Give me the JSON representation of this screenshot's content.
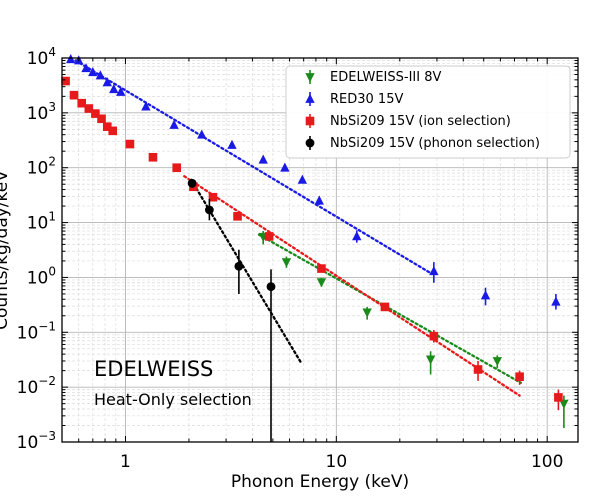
{
  "chart_data": {
    "type": "scatter",
    "xlabel": "Phonon Energy (keV)",
    "ylabel": "Counts/kg/day/keV",
    "xscale": "log",
    "yscale": "log",
    "xlim": [
      0.5,
      140
    ],
    "ylim": [
      0.001,
      10000
    ],
    "grid": true,
    "legend_position": "top-right",
    "x_tick_labels": [
      "1",
      "10",
      "100"
    ],
    "y_tick_labels": [
      {
        "base": "10",
        "exp": "-3"
      },
      {
        "base": "10",
        "exp": "-2"
      },
      {
        "base": "10",
        "exp": "-1"
      },
      {
        "base": "10",
        "exp": "0"
      },
      {
        "base": "10",
        "exp": "1"
      },
      {
        "base": "10",
        "exp": "2"
      },
      {
        "base": "10",
        "exp": "3"
      },
      {
        "base": "10",
        "exp": "4"
      }
    ],
    "annotations": [
      {
        "text": "EDELWEISS",
        "size": "large"
      },
      {
        "text": "Heat-Only selection",
        "size": "medium"
      }
    ],
    "series": [
      {
        "name": "EDELWEISS-III 8V",
        "color": "#1a8a1a",
        "marker": "triangle-down",
        "points": [
          {
            "x": 4.5,
            "y": 5.5,
            "lo": 4.0,
            "hi": 7.0
          },
          {
            "x": 5.8,
            "y": 1.9,
            "lo": 1.5,
            "hi": 2.4
          },
          {
            "x": 8.5,
            "y": 0.82,
            "lo": 0.68,
            "hi": 0.98
          },
          {
            "x": 14,
            "y": 0.23,
            "lo": 0.17,
            "hi": 0.29
          },
          {
            "x": 28,
            "y": 0.032,
            "lo": 0.017,
            "hi": 0.045
          },
          {
            "x": 58,
            "y": 0.03,
            "lo": 0.022,
            "hi": 0.038
          },
          {
            "x": 120,
            "y": 0.005,
            "lo": 0.0018,
            "hi": 0.007
          }
        ],
        "fit": {
          "x": [
            4.3,
            75
          ],
          "y": [
            6.0,
            0.012
          ]
        }
      },
      {
        "name": "RED30 15V",
        "color": "#1a1ae6",
        "marker": "triangle-up",
        "points": [
          {
            "x": 0.55,
            "y": 9500
          },
          {
            "x": 0.6,
            "y": 9000
          },
          {
            "x": 0.65,
            "y": 6500
          },
          {
            "x": 0.7,
            "y": 5500
          },
          {
            "x": 0.76,
            "y": 4800
          },
          {
            "x": 0.82,
            "y": 3600
          },
          {
            "x": 0.88,
            "y": 2700
          },
          {
            "x": 0.95,
            "y": 2400
          },
          {
            "x": 1.25,
            "y": 1300
          },
          {
            "x": 1.7,
            "y": 600
          },
          {
            "x": 2.3,
            "y": 400
          },
          {
            "x": 3.2,
            "y": 260
          },
          {
            "x": 4.5,
            "y": 140
          },
          {
            "x": 5.7,
            "y": 100
          },
          {
            "x": 6.9,
            "y": 60
          },
          {
            "x": 8.3,
            "y": 25,
            "lo": 21,
            "hi": 30
          },
          {
            "x": 12.5,
            "y": 5.6,
            "lo": 4.3,
            "hi": 7.2
          },
          {
            "x": 29,
            "y": 1.3,
            "lo": 0.8,
            "hi": 1.9
          },
          {
            "x": 51,
            "y": 0.47,
            "lo": 0.31,
            "hi": 0.65
          },
          {
            "x": 110,
            "y": 0.36,
            "lo": 0.26,
            "hi": 0.5
          }
        ],
        "fit": {
          "x": [
            0.58,
            28
          ],
          "y": [
            9000,
            1.2
          ]
        }
      },
      {
        "name": "NbSi209 15V (ion selection)",
        "color": "#e61a1a",
        "marker": "square",
        "points": [
          {
            "x": 0.52,
            "y": 3800
          },
          {
            "x": 0.57,
            "y": 2100
          },
          {
            "x": 0.62,
            "y": 1500
          },
          {
            "x": 0.67,
            "y": 1200
          },
          {
            "x": 0.72,
            "y": 970
          },
          {
            "x": 0.77,
            "y": 780
          },
          {
            "x": 0.82,
            "y": 560
          },
          {
            "x": 0.87,
            "y": 470
          },
          {
            "x": 1.05,
            "y": 270
          },
          {
            "x": 1.35,
            "y": 155
          },
          {
            "x": 1.75,
            "y": 100
          },
          {
            "x": 2.1,
            "y": 45
          },
          {
            "x": 2.6,
            "y": 29
          },
          {
            "x": 3.4,
            "y": 13
          },
          {
            "x": 4.8,
            "y": 5.6
          },
          {
            "x": 8.5,
            "y": 1.45
          },
          {
            "x": 17,
            "y": 0.29
          },
          {
            "x": 29,
            "y": 0.085,
            "lo": 0.065,
            "hi": 0.11
          },
          {
            "x": 47,
            "y": 0.021,
            "lo": 0.013,
            "hi": 0.03
          },
          {
            "x": 74,
            "y": 0.0155,
            "lo": 0.011,
            "hi": 0.02
          },
          {
            "x": 113,
            "y": 0.0065,
            "lo": 0.0038,
            "hi": 0.009
          }
        ],
        "fit": {
          "x": [
            1.9,
            74
          ],
          "y": [
            70,
            0.007
          ]
        }
      },
      {
        "name": "NbSi209 15V (phonon selection)",
        "color": "#000000",
        "marker": "circle",
        "points": [
          {
            "x": 2.07,
            "y": 52,
            "lo": 43,
            "hi": 62
          },
          {
            "x": 2.5,
            "y": 17,
            "lo": 11,
            "hi": 27
          },
          {
            "x": 3.45,
            "y": 1.6,
            "lo": 0.5,
            "hi": 3.2
          },
          {
            "x": 4.9,
            "y": 0.68,
            "lo": 0.0008,
            "hi": 1.4
          }
        ],
        "fit": {
          "x": [
            2.05,
            6.8
          ],
          "y": [
            60,
            0.028
          ]
        }
      }
    ]
  }
}
